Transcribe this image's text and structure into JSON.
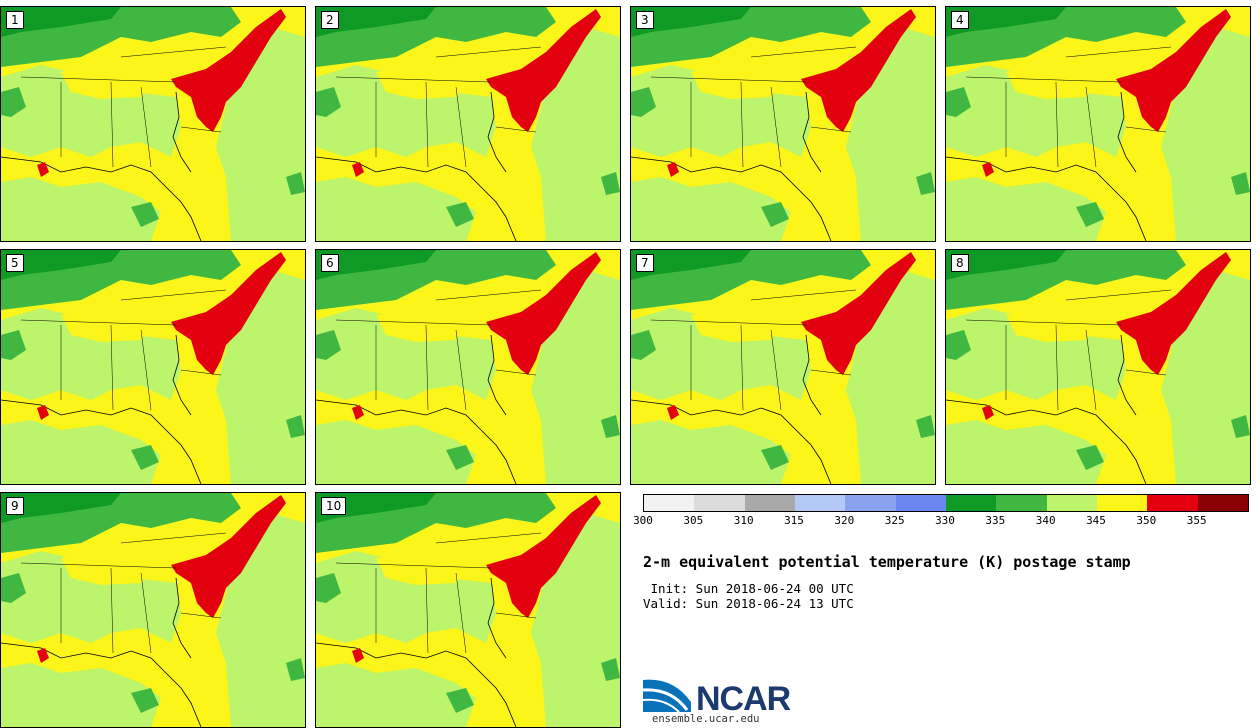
{
  "panels": [
    {
      "label": "1"
    },
    {
      "label": "2"
    },
    {
      "label": "3"
    },
    {
      "label": "4"
    },
    {
      "label": "5"
    },
    {
      "label": "6"
    },
    {
      "label": "7"
    },
    {
      "label": "8"
    },
    {
      "label": "9"
    },
    {
      "label": "10"
    }
  ],
  "colorbar": {
    "ticks": [
      "300",
      "305",
      "310",
      "315",
      "320",
      "325",
      "330",
      "335",
      "340",
      "345",
      "350",
      "355"
    ],
    "colors": [
      "#f2f2f2",
      "#dcdcdc",
      "#a9a9a9",
      "#b4c8f5",
      "#8aa2f0",
      "#6b87ef",
      "#0e9a24",
      "#3fb741",
      "#bcf46c",
      "#fbf51a",
      "#e3000f",
      "#8b0000"
    ]
  },
  "map_colors": {
    "dark_green": "#0e9a24",
    "green": "#3fb741",
    "light_green": "#bcf46c",
    "yellow": "#fbf51a",
    "red": "#e3000f",
    "border": "#000000"
  },
  "title": "2-m equivalent potential temperature (K) postage stamp",
  "init_line": " Init: Sun 2018-06-24 00 UTC",
  "valid_line": "Valid: Sun 2018-06-24 13 UTC",
  "logo": {
    "text": "NCAR",
    "url": "ensemble.ucar.edu"
  }
}
